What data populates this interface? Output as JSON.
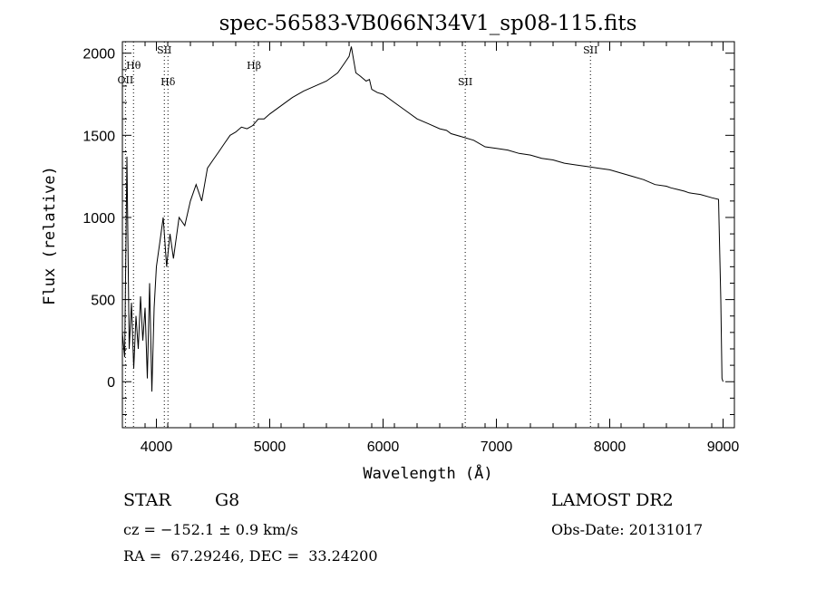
{
  "chart_data": {
    "type": "line",
    "title": "spec-56583-VB066N34V1_sp08-115.fits",
    "xlabel": "Wavelength (Å)",
    "ylabel": "Flux (relative)",
    "xlim": [
      3700,
      9100
    ],
    "ylim": [
      -280,
      2070
    ],
    "xticks": [
      4000,
      5000,
      6000,
      7000,
      8000,
      9000
    ],
    "yticks": [
      0,
      500,
      1000,
      1500,
      2000
    ],
    "grid": false,
    "series": [
      {
        "x": [
          3700,
          3720,
          3740,
          3760,
          3780,
          3800,
          3820,
          3840,
          3860,
          3880,
          3900,
          3920,
          3940,
          3960,
          3980,
          4000,
          4030,
          4060,
          4090,
          4120,
          4150,
          4200,
          4250,
          4300,
          4350,
          4400,
          4450,
          4500,
          4550,
          4600,
          4650,
          4700,
          4750,
          4800,
          4850,
          4900,
          4950,
          5000,
          5100,
          5200,
          5300,
          5400,
          5500,
          5600,
          5650,
          5700,
          5720,
          5740,
          5760,
          5800,
          5850,
          5880,
          5900,
          5950,
          6000,
          6100,
          6200,
          6300,
          6400,
          6500,
          6560,
          6600,
          6700,
          6800,
          6900,
          7000,
          7100,
          7200,
          7300,
          7400,
          7500,
          7600,
          7700,
          7800,
          7900,
          8000,
          8100,
          8200,
          8300,
          8400,
          8500,
          8540,
          8600,
          8660,
          8700,
          8800,
          8900,
          8960,
          8980,
          8990,
          9000
        ],
        "values": [
          300,
          150,
          1370,
          200,
          480,
          80,
          400,
          200,
          520,
          250,
          450,
          20,
          600,
          -60,
          450,
          700,
          850,
          1000,
          700,
          900,
          750,
          1000,
          950,
          1100,
          1200,
          1100,
          1300,
          1350,
          1400,
          1450,
          1500,
          1520,
          1550,
          1540,
          1560,
          1600,
          1600,
          1630,
          1680,
          1730,
          1770,
          1800,
          1830,
          1880,
          1930,
          1980,
          2040,
          1960,
          1880,
          1860,
          1830,
          1840,
          1780,
          1760,
          1750,
          1700,
          1650,
          1600,
          1570,
          1540,
          1530,
          1510,
          1490,
          1470,
          1430,
          1420,
          1410,
          1390,
          1380,
          1360,
          1350,
          1330,
          1320,
          1310,
          1300,
          1290,
          1270,
          1250,
          1230,
          1200,
          1190,
          1180,
          1170,
          1160,
          1150,
          1140,
          1120,
          1110,
          500,
          20,
          0
        ]
      }
    ],
    "line_markers": [
      {
        "label": "OII",
        "x": 3727
      },
      {
        "label": "Hθ",
        "x": 3798
      },
      {
        "label": "SII",
        "x": 4070
      },
      {
        "label": "Hδ",
        "x": 4102
      },
      {
        "label": "Hβ",
        "x": 4861
      },
      {
        "label": "SII",
        "x": 6725
      },
      {
        "label": "SII",
        "x": 7830
      }
    ]
  },
  "info": {
    "class": "STAR",
    "subclass": "G8",
    "survey": "LAMOST DR2",
    "cz": "cz = −152.1 ± 0.9 km/s",
    "obs_date": "Obs-Date: 20131017",
    "coords": "RA =  67.29246, DEC =  33.24200"
  }
}
